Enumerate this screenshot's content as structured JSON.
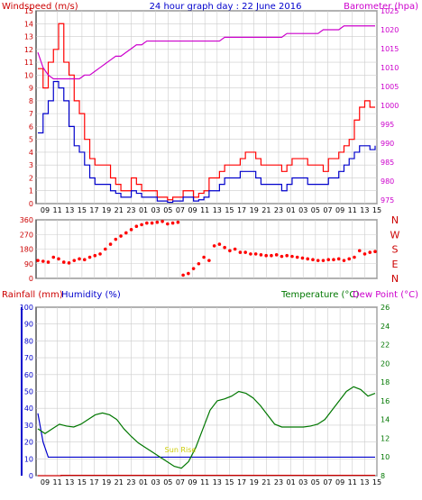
{
  "header": {
    "title": "24 hour graph day : 22 June 2016",
    "left_label": "Windspeed (m/s)",
    "right_label": "Barometer (hpa)"
  },
  "middle": {
    "compass": [
      "N",
      "W",
      "S",
      "E",
      "N"
    ]
  },
  "bottom": {
    "rain_label": "Rainfall (mm)",
    "humidity_label": "Humidity (%)",
    "temp_label": "Temperature (°C)",
    "dew_label": "Dew Point (°C)",
    "sun_label": "Sun Rise"
  },
  "colors": {
    "wind_gust": "#ff0000",
    "wind_avg": "#0000cc",
    "barometer": "#cc00cc",
    "direction": "#ff0000",
    "rain": "#cc0000",
    "humidity": "#0000cc",
    "temperature": "#007700",
    "grid": "#cccccc"
  },
  "chart_data": [
    {
      "type": "line",
      "title": "24 hour graph day : 22 June 2016",
      "x_ticks": [
        "09",
        "11",
        "13",
        "15",
        "17",
        "19",
        "21",
        "23",
        "01",
        "03",
        "05",
        "07",
        "09",
        "11",
        "13",
        "15",
        "17",
        "19",
        "21",
        "23",
        "01",
        "03",
        "05",
        "07",
        "09",
        "11",
        "13",
        "15"
      ],
      "ylabel": "Windspeed (m/s)",
      "ylim": [
        0,
        15
      ],
      "y_ticks": [
        0,
        1,
        2,
        3,
        4,
        5,
        6,
        7,
        8,
        9,
        10,
        11,
        12,
        13,
        14,
        15
      ],
      "y2label": "Barometer (hpa)",
      "y2lim": [
        974,
        1025
      ],
      "y2_ticks": [
        975,
        980,
        985,
        990,
        995,
        1000,
        1005,
        1010,
        1015,
        1020,
        1025
      ],
      "series": [
        {
          "values": [
            10.5,
            9,
            11,
            12,
            14,
            11,
            10,
            8,
            7,
            5,
            3.5,
            3,
            3,
            3,
            2,
            1.5,
            1,
            1,
            2,
            1.5,
            1,
            1,
            1,
            0.5,
            0.5,
            0.3,
            0.5,
            0.5,
            1,
            1,
            0.5,
            0.8,
            1,
            2,
            2,
            2.5,
            3,
            3,
            3,
            3.5,
            4,
            4,
            3.5,
            3,
            3,
            3,
            3,
            2.5,
            3,
            3.5,
            3.5,
            3.5,
            3,
            3,
            3,
            2.5,
            3.5,
            3.5,
            4,
            4.5,
            5,
            6.5,
            7.5,
            8,
            7.5,
            7.5
          ]
        },
        {
          "values": [
            5.5,
            7,
            8,
            9.5,
            9,
            8,
            6,
            4.5,
            4,
            3,
            2,
            1.5,
            1.5,
            1.5,
            1,
            0.8,
            0.5,
            0.5,
            1,
            0.8,
            0.5,
            0.5,
            0.5,
            0.2,
            0.2,
            0.1,
            0.2,
            0.2,
            0.5,
            0.5,
            0.2,
            0.3,
            0.5,
            1,
            1,
            1.5,
            2,
            2,
            2,
            2.5,
            2.5,
            2.5,
            2,
            1.5,
            1.5,
            1.5,
            1.5,
            1,
            1.5,
            2,
            2,
            2,
            1.5,
            1.5,
            1.5,
            1.5,
            2,
            2,
            2.5,
            3,
            3.5,
            4,
            4.5,
            4.5,
            4.2,
            4.5
          ]
        },
        {
          "values": [
            1014,
            1010,
            1008,
            1007,
            1007,
            1007,
            1007,
            1007,
            1007,
            1008,
            1008,
            1009,
            1010,
            1011,
            1012,
            1013,
            1013,
            1014,
            1015,
            1016,
            1016,
            1017,
            1017,
            1017,
            1017,
            1017,
            1017,
            1017,
            1017,
            1017,
            1017,
            1017,
            1017,
            1017,
            1017,
            1017,
            1018,
            1018,
            1018,
            1018,
            1018,
            1018,
            1018,
            1018,
            1018,
            1018,
            1018,
            1018,
            1019,
            1019,
            1019,
            1019,
            1019,
            1019,
            1019,
            1020,
            1020,
            1020,
            1020,
            1021,
            1021,
            1021,
            1021,
            1021,
            1021,
            1021
          ]
        }
      ]
    },
    {
      "type": "scatter",
      "x_ticks": [
        "09",
        "11",
        "13",
        "15",
        "17",
        "19",
        "21",
        "23",
        "01",
        "03",
        "05",
        "07",
        "09",
        "11",
        "13",
        "15",
        "17",
        "19",
        "21",
        "23",
        "01",
        "03",
        "05",
        "07",
        "09",
        "11",
        "13",
        "15"
      ],
      "ylim": [
        0,
        360
      ],
      "y_ticks": [
        0,
        90,
        180,
        270,
        360
      ],
      "series": [
        {
          "values": [
            110,
            105,
            100,
            130,
            120,
            100,
            95,
            110,
            120,
            115,
            130,
            140,
            150,
            180,
            210,
            240,
            260,
            280,
            300,
            320,
            330,
            340,
            340,
            345,
            350,
            335,
            340,
            345,
            20,
            30,
            60,
            90,
            130,
            110,
            200,
            210,
            190,
            170,
            180,
            160,
            160,
            150,
            150,
            145,
            140,
            140,
            145,
            135,
            140,
            135,
            130,
            125,
            120,
            115,
            110,
            110,
            115,
            115,
            120,
            110,
            120,
            130,
            170,
            150,
            160,
            165
          ]
        }
      ]
    },
    {
      "type": "line",
      "x_ticks": [
        "09",
        "11",
        "13",
        "15",
        "17",
        "19",
        "21",
        "23",
        "01",
        "03",
        "05",
        "07",
        "09",
        "11",
        "13",
        "15",
        "17",
        "19",
        "21",
        "23",
        "01",
        "03",
        "05",
        "07",
        "09",
        "11",
        "13",
        "15"
      ],
      "ylim": [
        0,
        100
      ],
      "y_ticks": [
        0,
        10,
        20,
        30,
        40,
        50,
        60,
        70,
        80,
        90,
        100
      ],
      "y2lim": [
        8,
        26
      ],
      "y2_ticks": [
        8,
        10,
        12,
        14,
        16,
        18,
        20,
        22,
        24,
        26
      ],
      "series": [
        {
          "values": [
            37,
            20,
            11,
            11,
            11,
            11,
            11,
            11,
            11,
            11,
            11,
            11,
            11,
            11,
            11,
            11,
            11,
            11,
            11,
            11,
            11,
            11,
            11,
            11,
            11,
            11,
            11,
            11,
            11,
            11,
            11,
            11,
            11,
            11,
            11,
            11,
            11,
            11,
            11,
            11,
            11,
            11,
            11,
            11,
            11,
            11,
            11,
            11,
            11,
            11,
            11,
            11,
            11,
            11,
            11,
            11,
            11,
            11,
            11,
            11,
            11,
            11,
            11,
            11,
            11,
            11
          ]
        },
        {
          "values": [
            13,
            12.5,
            13,
            13.5,
            13.3,
            13.2,
            13.5,
            14,
            14.5,
            14.7,
            14.5,
            14,
            13,
            12.2,
            11.5,
            11,
            10.5,
            10,
            9.5,
            9,
            8.8,
            9.5,
            11,
            13,
            15,
            16,
            16.2,
            16.5,
            17,
            16.8,
            16.3,
            15.5,
            14.5,
            13.5,
            13.2,
            13.2,
            13.2,
            13.2,
            13.3,
            13.5,
            14,
            15,
            16,
            17,
            17.5,
            17.2,
            16.5,
            16.8
          ]
        },
        {
          "values": [
            0,
            0,
            0.2,
            0.2,
            0.2,
            0.2,
            0.2,
            0.2,
            0.2,
            0.2,
            0.2,
            0.2,
            0.2,
            0.2,
            0.2,
            0.2,
            0.2,
            0.2,
            0.2,
            0.2,
            0.2,
            0.2,
            0.2,
            0.2,
            0.2,
            0.2,
            0.2,
            0.2,
            0.2,
            0.2
          ]
        }
      ]
    }
  ]
}
